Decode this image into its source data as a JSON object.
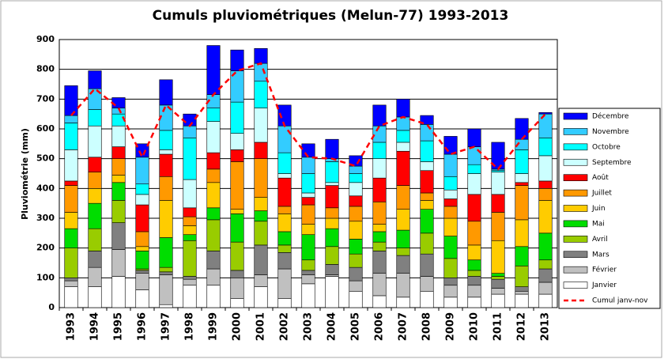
{
  "chart_data": {
    "type": "bar",
    "stacked": true,
    "title": "Cumuls pluviométriques (Melun-77) 1993-2013",
    "y_label": "Pluviométrie (mm)",
    "categories": [
      "1993",
      "1994",
      "1995",
      "1996",
      "1997",
      "1998",
      "1999",
      "2000",
      "2001",
      "2002",
      "2003",
      "2004",
      "2005",
      "2006",
      "2007",
      "2008",
      "2009",
      "2010",
      "2011",
      "2012",
      "2013"
    ],
    "ylim": [
      0,
      900
    ],
    "yticks": [
      0,
      100,
      200,
      300,
      400,
      500,
      600,
      700,
      800,
      900
    ],
    "grid": true,
    "legend": "right",
    "series": [
      {
        "name": "Janvier",
        "color": "#ffffff",
        "values": [
          70,
          70,
          105,
          60,
          10,
          75,
          75,
          30,
          70,
          30,
          80,
          105,
          55,
          40,
          35,
          55,
          35,
          35,
          45,
          45,
          45
        ]
      },
      {
        "name": "Février",
        "color": "#c0c0c0",
        "values": [
          20,
          65,
          90,
          55,
          100,
          20,
          55,
          70,
          40,
          100,
          30,
          5,
          35,
          75,
          80,
          50,
          40,
          40,
          20,
          10,
          40
        ]
      },
      {
        "name": "Mars",
        "color": "#808080",
        "values": [
          10,
          55,
          90,
          10,
          10,
          10,
          60,
          25,
          100,
          55,
          15,
          35,
          45,
          75,
          60,
          75,
          25,
          30,
          30,
          15,
          45
        ]
      },
      {
        "name": "Avril",
        "color": "#99cc00",
        "values": [
          100,
          75,
          75,
          5,
          15,
          120,
          105,
          95,
          80,
          25,
          35,
          60,
          45,
          30,
          25,
          70,
          65,
          20,
          10,
          70,
          30
        ]
      },
      {
        "name": "Mai",
        "color": "#00dd00",
        "values": [
          65,
          85,
          60,
          60,
          100,
          20,
          40,
          95,
          35,
          45,
          85,
          60,
          50,
          35,
          60,
          80,
          75,
          35,
          10,
          65,
          90
        ]
      },
      {
        "name": "Juin",
        "color": "#ffcc00",
        "values": [
          55,
          50,
          25,
          15,
          125,
          30,
          85,
          15,
          45,
          60,
          35,
          35,
          60,
          25,
          70,
          30,
          60,
          50,
          110,
          90,
          110
        ]
      },
      {
        "name": "Juillet",
        "color": "#ff9900",
        "values": [
          90,
          55,
          55,
          50,
          80,
          30,
          45,
          160,
          130,
          25,
          65,
          35,
          50,
          75,
          80,
          25,
          40,
          80,
          95,
          115,
          40
        ]
      },
      {
        "name": "Août",
        "color": "#ff0000",
        "values": [
          15,
          50,
          40,
          90,
          75,
          30,
          55,
          40,
          55,
          95,
          25,
          75,
          35,
          80,
          115,
          75,
          25,
          90,
          60,
          10,
          25
        ]
      },
      {
        "name": "Septembre",
        "color": "#ccffff",
        "values": [
          105,
          105,
          70,
          35,
          15,
          95,
          105,
          55,
          115,
          15,
          15,
          10,
          45,
          65,
          30,
          30,
          30,
          70,
          75,
          30,
          85
        ]
      },
      {
        "name": "Octobre",
        "color": "#00ffff",
        "values": [
          90,
          55,
          40,
          35,
          65,
          140,
          45,
          105,
          90,
          70,
          65,
          70,
          30,
          55,
          40,
          70,
          45,
          30,
          5,
          80,
          60
        ]
      },
      {
        "name": "Novembre",
        "color": "#33ccff",
        "values": [
          25,
          70,
          20,
          90,
          85,
          40,
          45,
          105,
          60,
          90,
          55,
          10,
          25,
          55,
          45,
          55,
          75,
          60,
          5,
          35,
          80
        ]
      },
      {
        "name": "Décembre",
        "color": "#0000ff",
        "values": [
          100,
          60,
          35,
          45,
          85,
          40,
          165,
          70,
          50,
          70,
          45,
          65,
          35,
          70,
          60,
          30,
          60,
          60,
          90,
          70,
          5
        ]
      },
      {
        "name": "Cumul janv-nov",
        "type": "line",
        "color": "#ff0000",
        "values": [
          645,
          735,
          670,
          505,
          680,
          610,
          715,
          795,
          820,
          610,
          505,
          500,
          475,
          610,
          640,
          615,
          515,
          540,
          465,
          565,
          650
        ]
      }
    ]
  }
}
